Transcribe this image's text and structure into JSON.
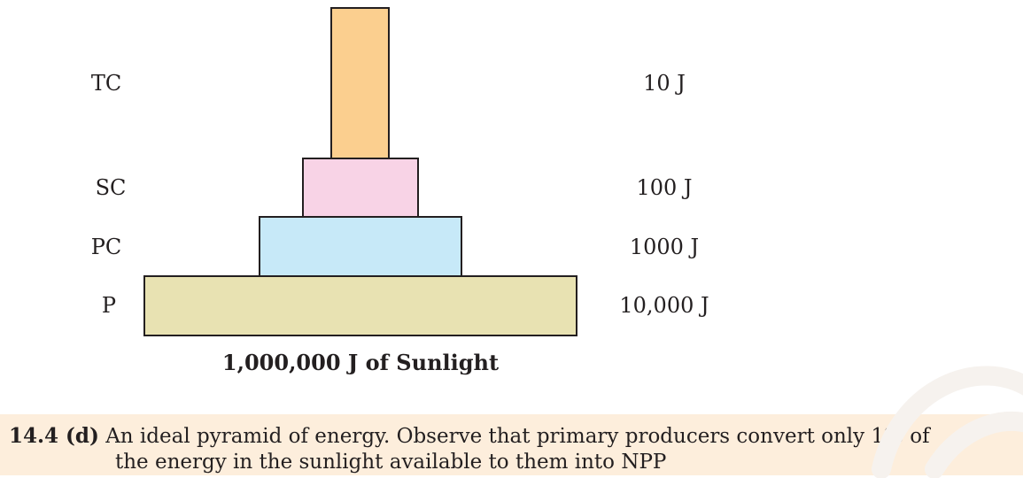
{
  "pyramid": {
    "levels": [
      {
        "name": "TC",
        "energy": "10 J",
        "color": "#fbcf8f"
      },
      {
        "name": "SC",
        "energy": "100 J",
        "color": "#f8d3e6"
      },
      {
        "name": "PC",
        "energy": "1000 J",
        "color": "#c7e9f8"
      },
      {
        "name": "P",
        "energy": "10,000 J",
        "color": "#e8e2b2"
      }
    ],
    "base_label": "1,000,000 J of Sunlight"
  },
  "caption": {
    "figure_number": "14.4 (d)",
    "line1": "An ideal pyramid of energy. Observe that primary producers convert only 1% of",
    "line2": "the energy in the sunlight available to them into NPP"
  }
}
